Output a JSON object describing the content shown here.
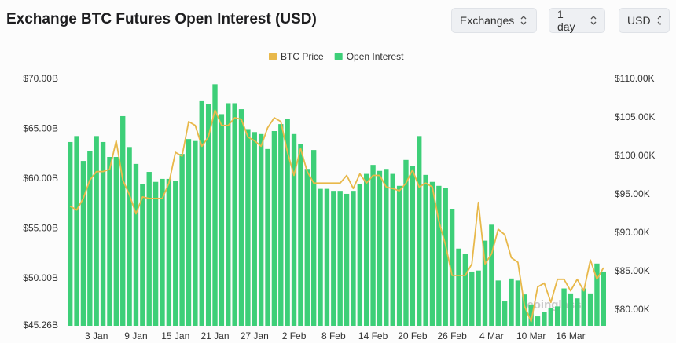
{
  "controls": [
    "Exchanges",
    "1 day",
    "USD"
  ],
  "watermark": "coinglass",
  "chart_data": {
    "type": "bar",
    "title": "Exchange BTC Futures Open Interest (USD)",
    "categories": [
      null,
      null,
      null,
      null,
      "3 Jan",
      null,
      null,
      null,
      null,
      null,
      "9 Jan",
      null,
      null,
      null,
      null,
      null,
      "15 Jan",
      null,
      null,
      null,
      null,
      null,
      "21 Jan",
      null,
      null,
      null,
      null,
      null,
      "27 Jan",
      null,
      null,
      null,
      null,
      null,
      "2 Feb",
      null,
      null,
      null,
      null,
      null,
      "8 Feb",
      null,
      null,
      null,
      null,
      null,
      "14 Feb",
      null,
      null,
      null,
      null,
      null,
      "20 Feb",
      null,
      null,
      null,
      null,
      null,
      "26 Feb",
      null,
      null,
      null,
      null,
      null,
      "4 Mar",
      null,
      null,
      null,
      null,
      null,
      "10 Mar",
      null,
      null,
      null,
      null,
      null,
      "16 Mar",
      null,
      null,
      null,
      null,
      null
    ],
    "series": [
      {
        "name": "BTC Price",
        "type": "line",
        "axis": "y2",
        "color": "#e8b84a",
        "values": [
          93.5,
          93.0,
          94.5,
          96.9,
          98.0,
          98.0,
          98.3,
          102.0,
          96.9,
          95.0,
          92.5,
          94.7,
          94.5,
          94.5,
          94.5,
          96.5,
          100.5,
          100.0,
          104.5,
          104.0,
          101.3,
          102.5,
          106.0,
          104.0,
          104.0,
          105.0,
          104.8,
          102.5,
          102.0,
          101.3,
          103.7,
          105.0,
          104.5,
          100.5,
          97.5,
          101.0,
          98.0,
          96.5,
          96.5,
          96.5,
          96.5,
          96.5,
          97.5,
          95.8,
          97.7,
          96.5,
          97.5,
          97.5,
          96.0,
          95.8,
          95.5,
          96.5,
          98.2,
          96.0,
          96.5,
          96.0,
          91.5,
          88.5,
          84.5,
          84.5,
          84.5,
          86.0,
          94.0,
          86.0,
          87.3,
          90.5,
          89.8,
          86.8,
          86.2,
          80.5,
          78.5,
          83.0,
          83.5,
          81.0,
          84.0,
          84.0,
          82.5,
          84.0,
          82.5,
          86.5,
          84.0,
          85.5
        ]
      },
      {
        "name": "Open Interest",
        "type": "bar",
        "color": "#3dcf78",
        "values": [
          63.7,
          64.3,
          61.8,
          62.8,
          64.3,
          63.7,
          62.2,
          62.2,
          66.3,
          63.2,
          61.5,
          59.5,
          60.7,
          59.7,
          60.0,
          60.0,
          59.8,
          62.5,
          64.0,
          63.8,
          67.8,
          67.5,
          69.5,
          66.5,
          67.6,
          67.6,
          67.0,
          65.0,
          64.7,
          64.5,
          63.0,
          64.8,
          65.5,
          66.0,
          64.5,
          63.5,
          61.0,
          62.9,
          59.0,
          59.0,
          58.8,
          58.8,
          58.5,
          58.8,
          59.5,
          60.5,
          61.4,
          60.8,
          61.0,
          60.5,
          59.3,
          61.9,
          61.3,
          64.3,
          60.4,
          59.7,
          59.3,
          59.1,
          57.0,
          53.0,
          52.5,
          50.7,
          50.8,
          53.8,
          55.4,
          49.8,
          47.7,
          50.0,
          49.8,
          48.4,
          47.4,
          46.2,
          46.6,
          47.0,
          47.2,
          49.0,
          48.5,
          48.0,
          49.0,
          48.5,
          51.5,
          50.7
        ]
      }
    ],
    "ylim": [
      45.26,
      70
    ],
    "yticks": [
      {
        "value": 45.26,
        "label": "$45.26B"
      },
      {
        "value": 50,
        "label": "$50.00B"
      },
      {
        "value": 55,
        "label": "$55.00B"
      },
      {
        "value": 60,
        "label": "$60.00B"
      },
      {
        "value": 65,
        "label": "$65.00B"
      },
      {
        "value": 70,
        "label": "$70.00B"
      }
    ],
    "y2lim": [
      77.96,
      110
    ],
    "y2ticks": [
      {
        "value": 80,
        "label": "$80.00K"
      },
      {
        "value": 85,
        "label": "$85.00K"
      },
      {
        "value": 90,
        "label": "$90.00K"
      },
      {
        "value": 95,
        "label": "$95.00K"
      },
      {
        "value": 100,
        "label": "$100.00K"
      },
      {
        "value": 105,
        "label": "$105.00K"
      },
      {
        "value": 110,
        "label": "$110.00K"
      }
    ],
    "grid": false,
    "legend": "top"
  }
}
